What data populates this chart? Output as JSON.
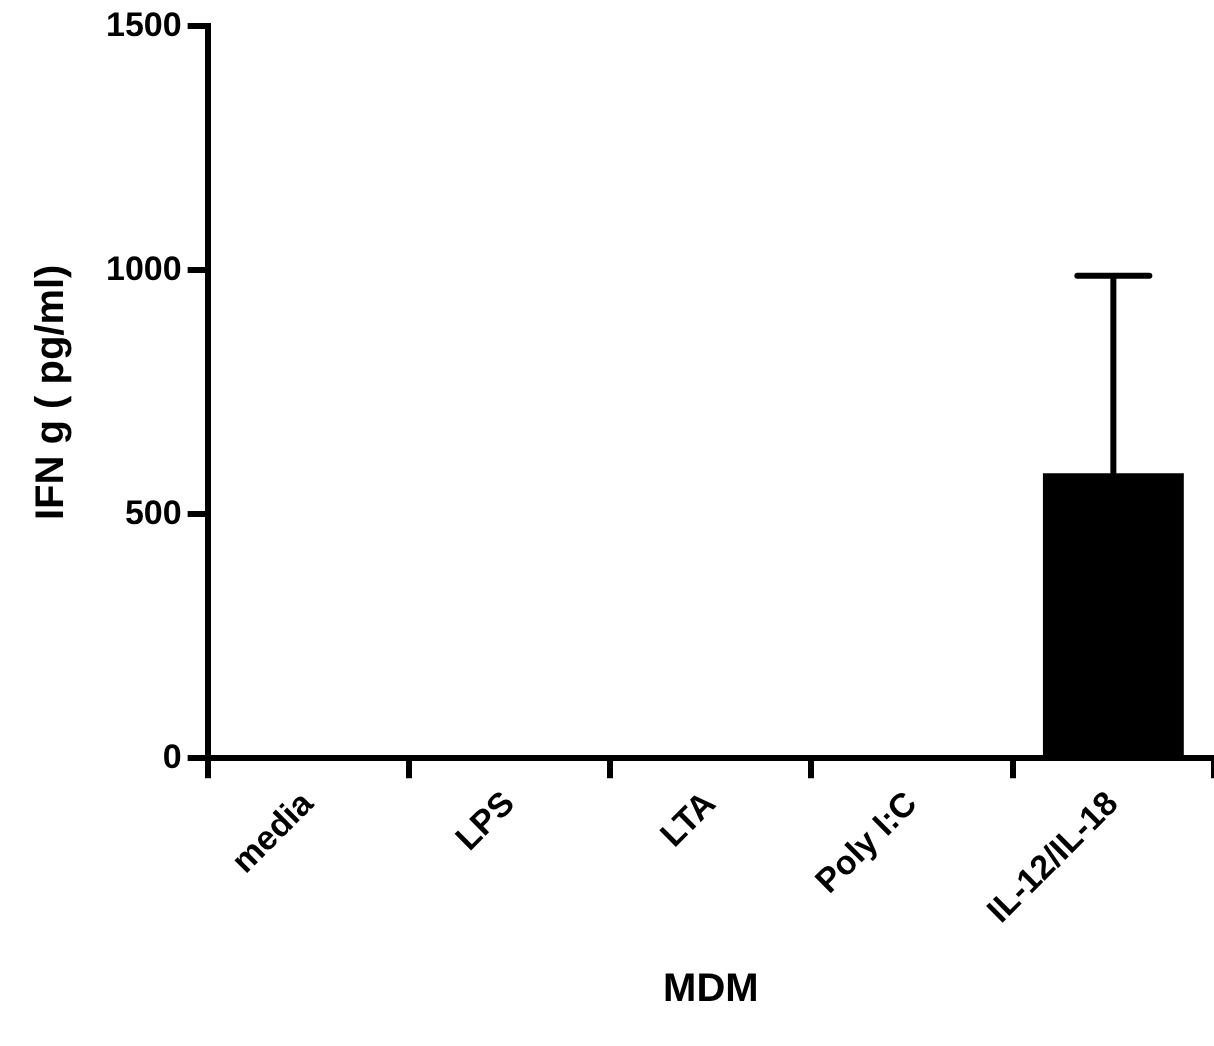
{
  "chart_data": {
    "type": "bar",
    "xlabel": "MDM",
    "ylabel": "IFN g ( pg/ml)",
    "categories": [
      "media",
      "LPS",
      "LTA",
      "Poly I:C",
      "IL-12/IL-18"
    ],
    "values": [
      0,
      0,
      5,
      0,
      584
    ],
    "color": "#000000",
    "errors": [
      null,
      null,
      null,
      null,
      [
        584,
        989
      ]
    ],
    "ylim": [
      0,
      1500
    ],
    "yticks": [
      0,
      500,
      1000,
      1500
    ],
    "grid": false,
    "legend": false
  }
}
